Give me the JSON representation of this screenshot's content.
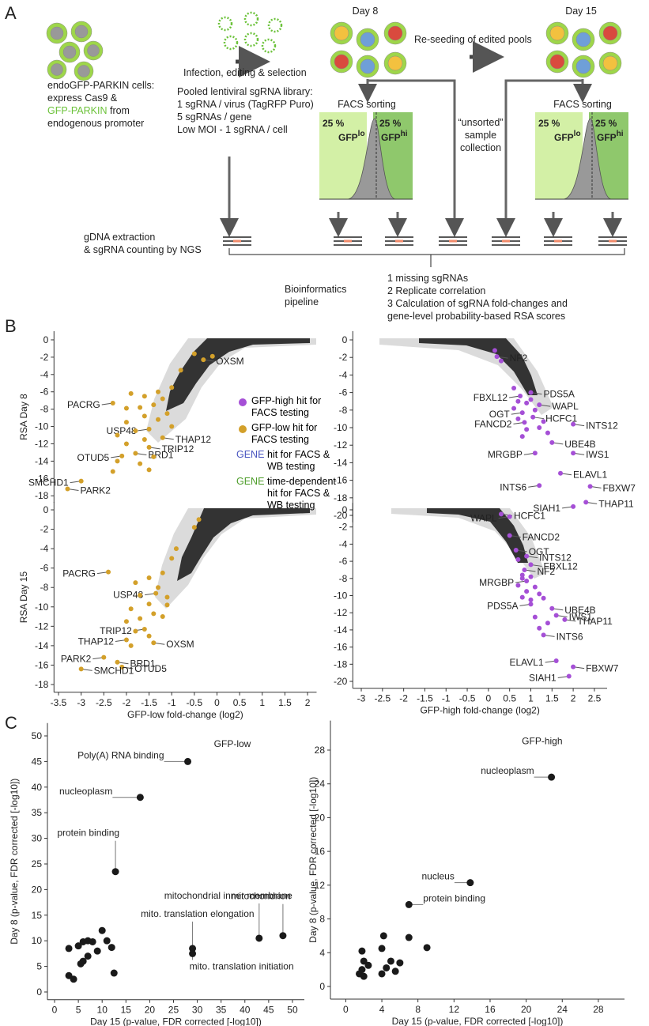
{
  "panel_labels": [
    "A",
    "B",
    "C"
  ],
  "panel_a": {
    "cells_text": [
      "endoGFP-PARKIN cells:",
      "express Cas9 &",
      "GFP-PARKIN",
      "from",
      "endogenous promoter"
    ],
    "infection": "Infection, editing & selection",
    "library": [
      "Pooled lentiviral sgRNA library:",
      "1 sgRNA / virus (TagRFP Puro)",
      "5 sgRNAs / gene",
      "Low MOI  - 1 sgRNA / cell"
    ],
    "day8": "Day 8",
    "day15": "Day 15",
    "reseeding": "Re-seeding of edited pools",
    "facs": [
      {
        "title": "FACS sorting",
        "low_pct": "25 %",
        "low_label": "GFP",
        "low_sup": "lo",
        "high_pct": "25 %",
        "high_label": "GFP",
        "high_sup": "hi"
      },
      {
        "title": "FACS sorting",
        "low_pct": "25 %",
        "low_label": "GFP",
        "low_sup": "lo",
        "high_pct": "25 %",
        "high_label": "GFP",
        "high_sup": "hi"
      }
    ],
    "unsorted": [
      "“unsorted”",
      "sample",
      "collection"
    ],
    "gdna": [
      "gDNA extraction",
      "& sgRNA counting by NGS"
    ],
    "bioinformatics": [
      "Bioinformatics",
      "pipeline"
    ],
    "steps": [
      "1 missing sgRNAs",
      "2 Replicate correlation",
      "3 Calculation of sgRNA fold-changes and",
      "gene-level probability-based RSA scores"
    ]
  },
  "chart_data": [
    {
      "type": "scatter",
      "ylabel": "RSA Day 8",
      "xlim": [
        -3.6,
        2.2
      ],
      "ylim": [
        -18.8,
        1
      ],
      "yticks": [
        0,
        -2,
        -4,
        -6,
        -8,
        -10,
        -12,
        -14,
        -16,
        -18
      ],
      "legend_notes": [
        {
          "marker": "GENE",
          "text": "hit for FACS & WB testing",
          "color": "#4a56c0"
        },
        {
          "marker": "GENE",
          "text": "time-dependent hit for FACS & WB testing",
          "color": "#4f9e2c"
        }
      ],
      "series": [
        {
          "name": "GFP-low hit for FACS testing",
          "color": "#d3a02a",
          "x": [
            -0.3,
            -2.3,
            -1.5,
            -1.2,
            -1.5,
            -1.8,
            -2.1,
            -3.0,
            -3.3
          ],
          "values": [
            -2.3,
            -7.3,
            -10.3,
            -11.3,
            -12.4,
            -13.1,
            -13.4,
            -16.3,
            -17.2
          ],
          "labels": [
            "OXSM",
            "PACRG",
            "USP48",
            "THAP12",
            "TRIP12",
            "BRD1",
            "OTUD5",
            "SMCHD1",
            "PARK2"
          ],
          "label_colors": [
            "#4f9e2c",
            "#4a56c0",
            "#4a56c0",
            "#4a56c0",
            "#4a56c0",
            "#4a56c0",
            "#4a56c0",
            "#4a56c0",
            "#4a56c0"
          ]
        },
        {
          "color": "#d3a02a",
          "x": [
            -0.5,
            -0.1,
            -0.8,
            -1.0,
            -1.3,
            -1.2,
            -1.6,
            -1.9,
            -1.4,
            -1.7,
            -2.0,
            -1.1,
            -1.6,
            -2.0,
            -1.3,
            -1.8,
            -1.0,
            -2.2,
            -1.6,
            -2.0,
            -1.4,
            -1.7,
            -2.2,
            -1.5,
            -2.3
          ],
          "values": [
            -1.6,
            -1.9,
            -3.5,
            -5.5,
            -6.0,
            -6.8,
            -6.5,
            -6.2,
            -7.5,
            -7.8,
            -7.9,
            -8.5,
            -8.8,
            -9.5,
            -9.2,
            -10.5,
            -10.0,
            -11.0,
            -11.5,
            -12.0,
            -13.5,
            -14.3,
            -14.0,
            -15.0,
            -15.2
          ]
        }
      ]
    },
    {
      "type": "scatter",
      "ylabel": "RSA Day 15",
      "xlabel": "GFP-low fold-change (log2)",
      "xlim": [
        -3.6,
        2.2
      ],
      "ylim": [
        -18.8,
        0.8
      ],
      "xticks": [
        -3.5,
        -3,
        -2.5,
        -2,
        -1.5,
        -1,
        -0.5,
        0,
        0.5,
        1,
        1.5,
        2
      ],
      "yticks": [
        0,
        -2,
        -4,
        -6,
        -8,
        -10,
        -12,
        -14,
        -16,
        -18
      ],
      "series": [
        {
          "color": "#d3a02a",
          "x": [
            -2.4,
            -1.35,
            -1.6,
            -1.4,
            -2.0,
            -2.5,
            -2.2,
            -2.1,
            -3.0
          ],
          "values": [
            -6.4,
            -8.6,
            -12.3,
            -13.7,
            -13.4,
            -15.2,
            -15.7,
            -16.2,
            -16.4
          ],
          "labels": [
            "PACRG",
            "USP48",
            "TRIP12",
            "OXSM",
            "THAP12",
            "PARK2",
            "BRD1",
            "OTUD5",
            "SMCHD1"
          ],
          "label_colors": [
            "#4a56c0",
            "#4a56c0",
            "#4a56c0",
            "#4f9e2c",
            "#4a56c0",
            "#4a56c0",
            "#4a56c0",
            "#4a56c0",
            "#4a56c0"
          ]
        },
        {
          "color": "#d3a02a",
          "x": [
            -0.4,
            -0.5,
            -0.9,
            -1.0,
            -1.2,
            -1.5,
            -1.8,
            -1.3,
            -1.7,
            -1.1,
            -1.5,
            -1.9,
            -1.4,
            -1.7,
            -2.0,
            -1.2,
            -1.8,
            -1.5,
            -1.9,
            -1.1
          ],
          "values": [
            -1.0,
            -1.8,
            -4.0,
            -5.0,
            -6.5,
            -7.0,
            -7.5,
            -8.0,
            -8.8,
            -9.0,
            -9.7,
            -10.2,
            -10.7,
            -11.2,
            -11.5,
            -11.0,
            -12.5,
            -13.0,
            -14.0,
            -9.8
          ]
        }
      ]
    },
    {
      "type": "scatter",
      "xlim": [
        -3.2,
        2.8
      ],
      "ylim": [
        -20.8,
        1
      ],
      "yticks": [
        0,
        -2,
        -4,
        -6,
        -8,
        -10,
        -12,
        -14,
        -16,
        -18,
        -20
      ],
      "series": [
        {
          "name": "GFP-high hit for FACS testing",
          "color": "#a54fd6",
          "x": [
            0.2,
            1.0,
            0.75,
            1.2,
            0.8,
            1.05,
            0.85,
            2.0,
            1.5,
            2.0,
            1.1,
            1.7,
            2.4,
            1.2,
            2.3,
            2.0
          ],
          "values": [
            -1.9,
            -6.0,
            -6.4,
            -7.4,
            -8.3,
            -8.8,
            -9.4,
            -9.6,
            -11.7,
            -12.9,
            -12.9,
            -15.2,
            -16.7,
            -16.6,
            -18.5,
            -19.0
          ],
          "labels": [
            "NF2",
            "PDS5A",
            "FBXL12",
            "WAPL",
            "OGT",
            "HCFC1",
            "FANCD2",
            "INTS12",
            "UBE4B",
            "IWS1",
            "MRGBP",
            "ELAVL1",
            "FBXW7",
            "INTS6",
            "THAP11",
            "SIAH1"
          ],
          "label_colors": [
            "#4f9e2c",
            "#4a56c0",
            "#4a56c0",
            "#4f9e2c",
            "#4a56c0",
            "#4f9e2c",
            "#4f9e2c",
            "#4a56c0",
            "#4a56c0",
            "#4a56c0",
            "#4a56c0",
            "#4a56c0",
            "#4a56c0",
            "#4a56c0",
            "#4a56c0",
            "#4a56c0"
          ]
        },
        {
          "color": "#a54fd6",
          "x": [
            0.15,
            0.3,
            0.6,
            0.7,
            0.9,
            1.0,
            0.6,
            1.1,
            0.7,
            1.3,
            0.9,
            1.2,
            1.4,
            0.8
          ],
          "values": [
            -1.2,
            -2.4,
            -5.5,
            -7.0,
            -7.2,
            -6.8,
            -7.8,
            -8.0,
            -9.0,
            -9.3,
            -10.2,
            -10.0,
            -10.6,
            -11.0
          ]
        }
      ]
    },
    {
      "type": "scatter",
      "xlabel": "GFP-high fold-change (log2)",
      "xlim": [
        -3.2,
        2.8
      ],
      "ylim": [
        -20.8,
        0.8
      ],
      "xticks": [
        -3,
        -2.5,
        -2,
        -1.5,
        -1,
        -0.5,
        0,
        0.5,
        1,
        1.5,
        2,
        2.5
      ],
      "yticks": [
        0,
        -2,
        -4,
        -6,
        -8,
        -10,
        -12,
        -14,
        -16,
        -18,
        -20
      ],
      "series": [
        {
          "color": "#a54fd6",
          "x": [
            0.3,
            0.5,
            0.5,
            0.65,
            0.9,
            1.0,
            0.85,
            0.9,
            1.0,
            1.5,
            1.6,
            1.8,
            1.3,
            1.6,
            2.0,
            1.9
          ],
          "values": [
            -0.5,
            -0.8,
            -3.0,
            -4.7,
            -5.4,
            -6.4,
            -7.0,
            -8.3,
            -11.0,
            -11.5,
            -12.3,
            -12.8,
            -14.6,
            -17.6,
            -18.3,
            -19.4
          ],
          "labels": [
            "HCFC1",
            "WAPL",
            "FANCD2",
            "OGT",
            "INTS12",
            "FBXL12",
            "NF2",
            "MRGBP",
            "PDS5A",
            "UBE4B",
            "IWS1",
            "THAP11",
            "INTS6",
            "ELAVL1",
            "FBXW7",
            "SIAH1"
          ],
          "label_colors": [
            "#4f9e2c",
            "#4f9e2c",
            "#4f9e2c",
            "#4a56c0",
            "#4a56c0",
            "#4a56c0",
            "#4f9e2c",
            "#4a56c0",
            "#4a56c0",
            "#4a56c0",
            "#4a56c0",
            "#4a56c0",
            "#4a56c0",
            "#4a56c0",
            "#4a56c0",
            "#4a56c0"
          ]
        },
        {
          "color": "#a54fd6",
          "x": [
            0.7,
            0.8,
            1.0,
            0.7,
            1.1,
            0.9,
            1.2,
            0.8,
            1.0,
            1.3,
            1.1,
            1.4,
            1.2,
            0.8
          ],
          "values": [
            -5.8,
            -7.6,
            -7.8,
            -8.8,
            -9.0,
            -9.5,
            -9.8,
            -10.2,
            -10.5,
            -10.3,
            -12.5,
            -13.2,
            -13.8,
            -8.0
          ]
        }
      ]
    },
    {
      "type": "scatter",
      "title": "GFP-low",
      "xlabel": "Day 15 (p-value, FDR corrected [-log10])",
      "ylabel": "Day 8 (p-value, FDR corrected [-log10])",
      "xlim": [
        -1.5,
        52.5
      ],
      "ylim": [
        -1.5,
        52.5
      ],
      "xticks": [
        0,
        5,
        10,
        15,
        20,
        25,
        30,
        35,
        40,
        45,
        50
      ],
      "yticks": [
        0,
        5,
        10,
        15,
        20,
        25,
        30,
        35,
        40,
        45,
        50
      ],
      "series": [
        {
          "color": "#1a1a1a",
          "x": [
            28,
            18,
            12.8,
            48,
            43,
            29,
            29
          ],
          "values": [
            45,
            38,
            23.5,
            11,
            10.5,
            8.5,
            7.5
          ],
          "labels": [
            "Poly(A) RNA binding",
            "nucleoplasm",
            "protein binding",
            "mitochondrion",
            "mitochondrial inner membrane",
            "mito. translation elongation",
            "mito. translation initiation"
          ]
        },
        {
          "color": "#1a1a1a",
          "x": [
            3,
            3,
            4,
            5,
            5.5,
            6,
            6,
            7,
            7,
            8,
            9,
            10,
            11,
            12,
            12.5
          ],
          "values": [
            8.5,
            3.2,
            2.5,
            9,
            5.5,
            9.8,
            6,
            10,
            7,
            9.8,
            8,
            12,
            10,
            8.7,
            3.7
          ]
        }
      ]
    },
    {
      "type": "scatter",
      "title": "GFP-high",
      "xlabel": "Day 15 (p-value, FDR corrected [-log10])",
      "ylabel": "Day 8 (p-value, FDR corrected [-log10])",
      "xlim": [
        -1.7,
        30.9
      ],
      "ylim": [
        -1.5,
        31.5
      ],
      "xticks": [
        0,
        4,
        8,
        12,
        16,
        20,
        24,
        28
      ],
      "yticks": [
        0,
        4,
        8,
        12,
        16,
        20,
        24,
        28
      ],
      "series": [
        {
          "color": "#1a1a1a",
          "x": [
            22.8,
            13.8,
            7
          ],
          "values": [
            24.8,
            12.3,
            9.7
          ],
          "labels": [
            "nucleoplasm",
            "nucleus",
            "protein binding"
          ]
        },
        {
          "color": "#1a1a1a",
          "x": [
            1.5,
            1.8,
            2,
            2,
            2.5,
            4,
            4.2,
            4.5,
            5,
            5.5,
            6,
            7,
            9,
            1.8,
            4
          ],
          "values": [
            1.5,
            2,
            3,
            1.2,
            2.5,
            4.5,
            6,
            2.2,
            3,
            1.8,
            2.8,
            5.8,
            4.6,
            4.2,
            1.5
          ]
        }
      ]
    }
  ]
}
